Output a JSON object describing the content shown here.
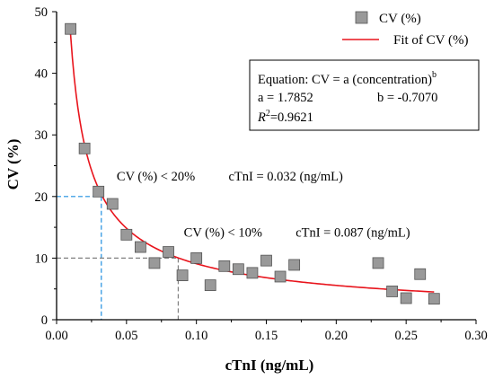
{
  "chart_data": {
    "type": "scatter",
    "xlabel": "cTnI (ng/mL)",
    "ylabel": "CV (%)",
    "xlim": [
      0.0,
      0.3
    ],
    "ylim": [
      0,
      50
    ],
    "xticks": [
      0.0,
      0.05,
      0.1,
      0.15,
      0.2,
      0.25,
      0.3
    ],
    "xtick_labels": [
      "0.00",
      "0.05",
      "0.10",
      "0.15",
      "0.20",
      "0.25",
      "0.30"
    ],
    "yticks": [
      0,
      10,
      20,
      30,
      40,
      50
    ],
    "ytick_labels": [
      "0",
      "10",
      "20",
      "30",
      "40",
      "50"
    ],
    "grid": false,
    "series": [
      {
        "name": "CV (%)",
        "kind": "scatter",
        "marker": "square",
        "color": "#999999",
        "edge_color": "#555555",
        "points": [
          [
            0.01,
            47.2
          ],
          [
            0.02,
            27.8
          ],
          [
            0.03,
            20.8
          ],
          [
            0.04,
            18.8
          ],
          [
            0.05,
            13.8
          ],
          [
            0.06,
            11.8
          ],
          [
            0.07,
            9.2
          ],
          [
            0.08,
            11.0
          ],
          [
            0.09,
            7.2
          ],
          [
            0.1,
            10.0
          ],
          [
            0.11,
            5.6
          ],
          [
            0.12,
            8.7
          ],
          [
            0.13,
            8.2
          ],
          [
            0.14,
            7.6
          ],
          [
            0.15,
            9.6
          ],
          [
            0.16,
            7.0
          ],
          [
            0.17,
            8.9
          ],
          [
            0.23,
            9.2
          ],
          [
            0.24,
            4.6
          ],
          [
            0.25,
            3.5
          ],
          [
            0.26,
            7.4
          ],
          [
            0.27,
            3.4
          ]
        ]
      },
      {
        "name": "Fit of CV (%)",
        "kind": "fit",
        "color": "#e8141c",
        "model": "power",
        "a": 1.7852,
        "b": -0.707,
        "x_range": [
          0.01,
          0.27
        ]
      }
    ],
    "legend": {
      "position": "top-right",
      "entries": [
        "CV (%)",
        "Fit of CV (%)"
      ]
    },
    "equation_box": {
      "line1": "Equation: CV = a (concentration)",
      "line1_sup": "b",
      "a_text": "a = 1.7852",
      "b_text": "b = -0.7070",
      "r2_symbol": "R",
      "r2_sup": "2",
      "r2_value": "=0.9621"
    },
    "reference_lines": [
      {
        "x": 0.032,
        "y": 20,
        "color": "#1e8fe0",
        "style": "dashed"
      },
      {
        "x": 0.087,
        "y": 10,
        "color": "#808080",
        "style": "dashed"
      }
    ],
    "annotations": [
      {
        "text": "CV (%) < 20%",
        "x": 0.043,
        "y": 22.6
      },
      {
        "text": "cTnI = 0.032 (ng/mL)",
        "x": 0.123,
        "y": 22.6
      },
      {
        "text": "CV (%) < 10%",
        "x": 0.091,
        "y": 13.5
      },
      {
        "text": "cTnI = 0.087 (ng/mL)",
        "x": 0.171,
        "y": 13.5
      }
    ]
  }
}
